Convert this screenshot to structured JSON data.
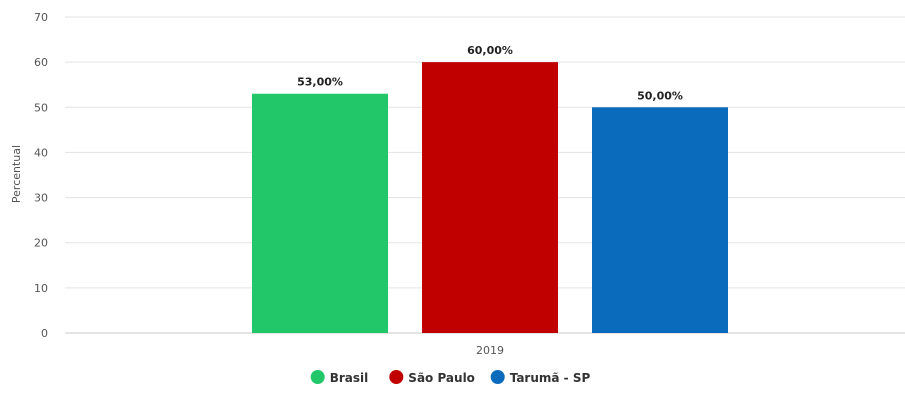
{
  "chart_data": {
    "type": "bar",
    "title": "",
    "xlabel": "",
    "ylabel": "Percentual",
    "categories": [
      "2019"
    ],
    "series": [
      {
        "name": "Brasil",
        "values": [
          53
        ],
        "label": "53,00%",
        "color": "#22c76a"
      },
      {
        "name": "São Paulo",
        "values": [
          60
        ],
        "label": "60,00%",
        "color": "#c00000"
      },
      {
        "name": "Tarumã - SP",
        "values": [
          50
        ],
        "label": "50,00%",
        "color": "#0a6bbd"
      }
    ],
    "ylim": [
      0,
      70
    ],
    "yticks": [
      "0",
      "10",
      "20",
      "30",
      "40",
      "50",
      "60",
      "70"
    ],
    "grid": true,
    "legend": "bottom-center"
  }
}
